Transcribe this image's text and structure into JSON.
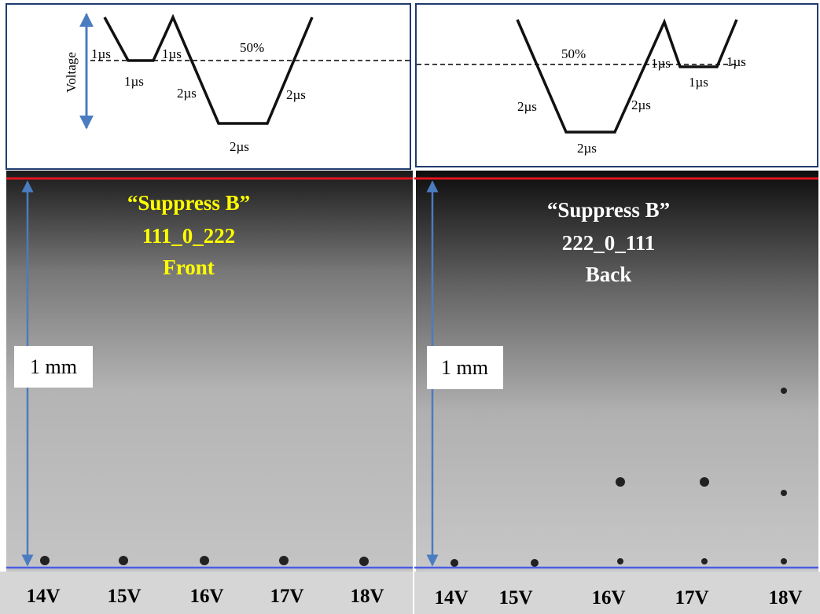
{
  "panels": [
    {
      "waveform": {
        "axis_label": "Voltage",
        "level": "50%",
        "durations": [
          "1µs",
          "1µs",
          "1µs",
          "2µs",
          "2µs",
          "2µs"
        ]
      },
      "title": [
        "“Suppress B”",
        "111_0_222",
        "Front"
      ],
      "scale": "1 mm",
      "voltages": [
        "14V",
        "15V",
        "16V",
        "17V",
        "18V"
      ]
    },
    {
      "waveform": {
        "level": "50%",
        "durations": [
          "2µs",
          "2µs",
          "2µs",
          "1µs",
          "1µs",
          "1µs"
        ]
      },
      "title": [
        "“Suppress B”",
        "222_0_111",
        "Back"
      ],
      "scale": "1 mm",
      "voltages": [
        "14V",
        "15V",
        "16V",
        "17V",
        "18V"
      ]
    }
  ]
}
